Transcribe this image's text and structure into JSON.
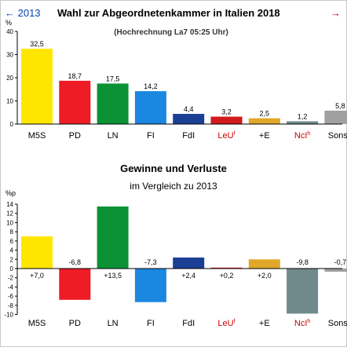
{
  "nav": {
    "prev_label": "← 2013",
    "next_label": "→",
    "link_color": "#0645ad",
    "next_color": "#cc0000"
  },
  "chart_data": [
    {
      "type": "bar",
      "title": "Wahl zur Abgeordnetenkammer in Italien 2018",
      "subtitle": "(Hochrechnung La7 05:25 Uhr)",
      "ylabel": "%",
      "ylim": [
        0,
        40
      ],
      "yticks": [
        "0",
        "10",
        "20",
        "30",
        "40"
      ],
      "grid": false,
      "categories": [
        "M5S",
        "PD",
        "LN",
        "FI",
        "FdI",
        "LeU",
        "+E",
        "NcI",
        "Sonst."
      ],
      "category_superscripts": [
        "",
        "",
        "",
        "",
        "",
        "f",
        "",
        "h",
        ""
      ],
      "values": [
        32.5,
        18.7,
        17.5,
        14.2,
        4.4,
        3.2,
        2.5,
        1.2,
        5.8
      ],
      "value_labels": [
        "32,5",
        "18,7",
        "17,5",
        "14,2",
        "4,4",
        "3,2",
        "2,5",
        "1,2",
        "5,8"
      ],
      "colors": [
        "#ffe600",
        "#ee1c25",
        "#0c9236",
        "#1b87e0",
        "#1b3f94",
        "#d21a1c",
        "#e0a82a",
        "#708a8b",
        "#a0a0a0"
      ],
      "label_colors": [
        "#000000",
        "#000000",
        "#000000",
        "#000000",
        "#000000",
        "#cc0000",
        "#000000",
        "#cc0000",
        "#000000"
      ]
    },
    {
      "type": "bar",
      "title": "Gewinne und Verluste",
      "subtitle": "im Vergleich zu 2013",
      "ylabel": "%p",
      "ylim": [
        -10,
        14
      ],
      "yticks": [
        "-10",
        "-8",
        "-6",
        "-4",
        "-2",
        "0",
        "2",
        "4",
        "6",
        "8",
        "10",
        "12",
        "14"
      ],
      "grid": false,
      "categories": [
        "M5S",
        "PD",
        "LN",
        "FI",
        "FdI",
        "LeU",
        "+E",
        "NcI",
        "Sonst."
      ],
      "category_superscripts": [
        "",
        "",
        "",
        "",
        "",
        "f",
        "",
        "h",
        ""
      ],
      "values": [
        7.0,
        -6.8,
        13.5,
        -7.3,
        2.4,
        0.2,
        2.0,
        -9.8,
        -0.7
      ],
      "value_labels": [
        "+7,0",
        "-6,8",
        "+13,5",
        "-7,3",
        "+2,4",
        "+0,2",
        "+2,0",
        "-9,8",
        "-0,7"
      ],
      "colors": [
        "#ffe600",
        "#ee1c25",
        "#0c9236",
        "#1b87e0",
        "#1b3f94",
        "#d21a1c",
        "#e0a82a",
        "#708a8b",
        "#a0a0a0"
      ],
      "label_colors": [
        "#000000",
        "#000000",
        "#000000",
        "#000000",
        "#000000",
        "#cc0000",
        "#000000",
        "#cc0000",
        "#000000"
      ]
    }
  ]
}
